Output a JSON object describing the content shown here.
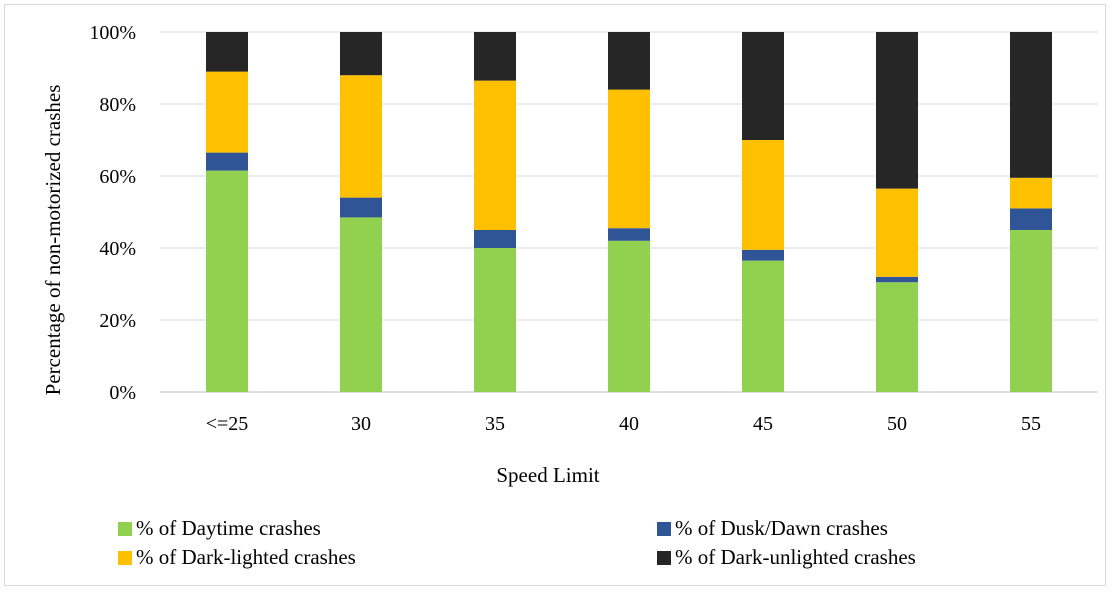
{
  "chart_data": {
    "type": "bar",
    "stacked": true,
    "percent_stacked": true,
    "title": "",
    "xlabel": "Speed Limit",
    "ylabel": "Percentage  of non-motorized  crashes",
    "categories": [
      "<=25",
      "30",
      "35",
      "40",
      "45",
      "50",
      "55"
    ],
    "ylim": [
      0,
      100
    ],
    "yticks": [
      "0%",
      "20%",
      "40%",
      "60%",
      "80%",
      "100%"
    ],
    "grid": true,
    "legend_position": "bottom",
    "series": [
      {
        "name": "% of Daytime crashes",
        "color": "#92d050",
        "values": [
          61.5,
          48.5,
          40,
          42,
          36.5,
          30.5,
          45
        ]
      },
      {
        "name": "% of Dusk/Dawn crashes",
        "color": "#2f5597",
        "values": [
          5,
          5.5,
          5,
          3.5,
          3,
          1.5,
          6
        ]
      },
      {
        "name": "% of Dark-lighted crashes",
        "color": "#ffc000",
        "values": [
          22.5,
          34,
          41.5,
          38.5,
          30.5,
          24.5,
          8.5
        ]
      },
      {
        "name": "% of Dark-unlighted crashes",
        "color": "#262626",
        "values": [
          11,
          12,
          13.5,
          16,
          30,
          43.5,
          40.5
        ]
      }
    ]
  }
}
